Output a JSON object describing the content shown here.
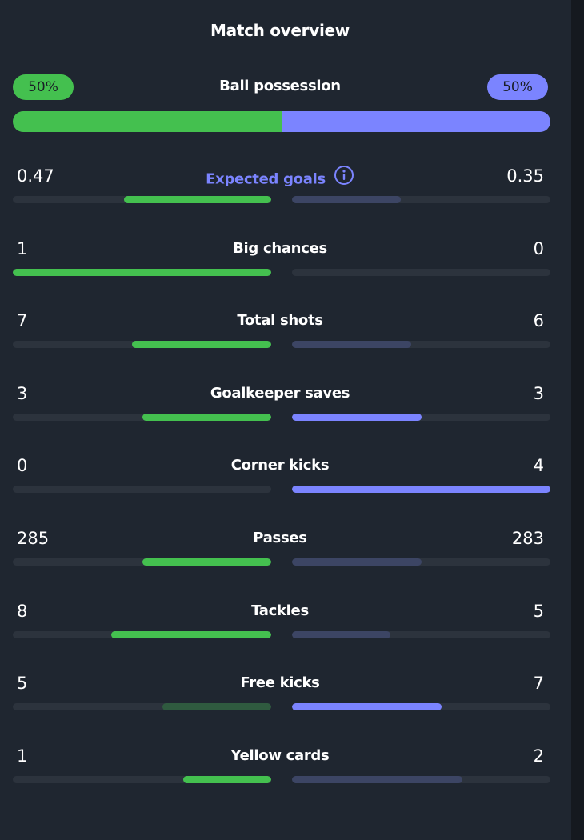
{
  "panel": {
    "title": "Match overview"
  },
  "colors": {
    "background": "#1f2630",
    "track": "#2c333d",
    "home_strong": "#44c04f",
    "home_weak": "#2f5a3f",
    "away_strong": "#7b84ff",
    "away_weak": "#3c4564"
  },
  "possession": {
    "label": "Ball possession",
    "home_pct_label": "50%",
    "away_pct_label": "50%",
    "home_share": 0.5,
    "away_share": 0.5
  },
  "stats": [
    {
      "label": "Expected goals",
      "home": "0.47",
      "away": "0.35",
      "home_fill": 0.57,
      "away_fill": 0.42,
      "home_style": "strong",
      "away_style": "weak",
      "highlight": true,
      "info_icon": "info-icon"
    },
    {
      "label": "Big chances",
      "home": "1",
      "away": "0",
      "home_fill": 1.0,
      "away_fill": 0.0,
      "home_style": "strong",
      "away_style": "weak"
    },
    {
      "label": "Total shots",
      "home": "7",
      "away": "6",
      "home_fill": 0.54,
      "away_fill": 0.46,
      "home_style": "strong",
      "away_style": "weak"
    },
    {
      "label": "Goalkeeper saves",
      "home": "3",
      "away": "3",
      "home_fill": 0.5,
      "away_fill": 0.5,
      "home_style": "strong",
      "away_style": "strong"
    },
    {
      "label": "Corner kicks",
      "home": "0",
      "away": "4",
      "home_fill": 0.0,
      "away_fill": 1.0,
      "home_style": "weak",
      "away_style": "strong"
    },
    {
      "label": "Passes",
      "home": "285",
      "away": "283",
      "home_fill": 0.5,
      "away_fill": 0.5,
      "home_style": "strong",
      "away_style": "weak"
    },
    {
      "label": "Tackles",
      "home": "8",
      "away": "5",
      "home_fill": 0.62,
      "away_fill": 0.38,
      "home_style": "strong",
      "away_style": "weak"
    },
    {
      "label": "Free kicks",
      "home": "5",
      "away": "7",
      "home_fill": 0.42,
      "away_fill": 0.58,
      "home_style": "weak",
      "away_style": "strong"
    },
    {
      "label": "Yellow cards",
      "home": "1",
      "away": "2",
      "home_fill": 0.34,
      "away_fill": 0.66,
      "home_style": "strong",
      "away_style": "weak"
    }
  ]
}
